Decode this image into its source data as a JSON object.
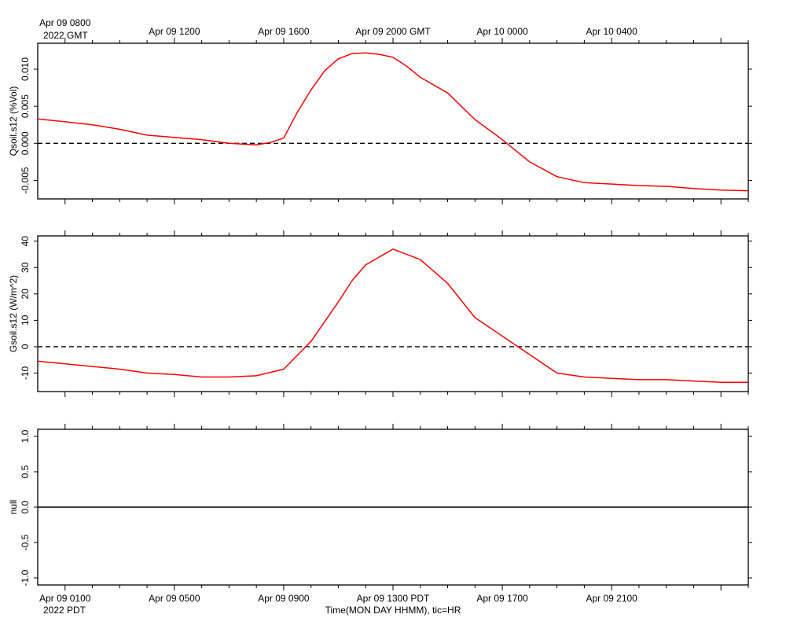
{
  "chart_data": [
    {
      "type": "line",
      "ylabel": "Qsoil.s12 (%Vol)",
      "ylim": [
        -0.0075,
        0.0135
      ],
      "yticks": [
        -0.005,
        0.0,
        0.005,
        0.01
      ],
      "ytick_labels": [
        "-0.005",
        "0.000",
        "0.005",
        "0.010"
      ],
      "zero_line": "dashed",
      "line_color": "#ff0000",
      "x": [
        0,
        1,
        2,
        3,
        4,
        5,
        6,
        7,
        8,
        8.5,
        9,
        9.5,
        10,
        10.5,
        11,
        11.5,
        12,
        12.5,
        13,
        13.5,
        14,
        15,
        16,
        17,
        18,
        19,
        20,
        21,
        22,
        23,
        24,
        25,
        26
      ],
      "values": [
        0.0033,
        0.0029,
        0.0025,
        0.0019,
        0.0011,
        0.0008,
        0.0005,
        0.0,
        -0.0002,
        0.0001,
        0.0007,
        0.0042,
        0.0072,
        0.0098,
        0.0114,
        0.0121,
        0.0122,
        0.012,
        0.0116,
        0.0104,
        0.0089,
        0.0068,
        0.0032,
        0.0005,
        -0.0025,
        -0.0045,
        -0.0053,
        -0.0055,
        -0.0057,
        -0.0058,
        -0.0061,
        -0.0063,
        -0.0064
      ]
    },
    {
      "type": "line",
      "ylabel": "Gsoil.s12 (W/m^2)",
      "ylim": [
        -17,
        42
      ],
      "yticks": [
        -10,
        0,
        10,
        20,
        30,
        40
      ],
      "ytick_labels": [
        "-10",
        "0",
        "10",
        "20",
        "30",
        "40"
      ],
      "zero_line": "dashed",
      "line_color": "#ff0000",
      "x": [
        0,
        1,
        2,
        3,
        4,
        5,
        6,
        7,
        8,
        9,
        10,
        11,
        11.5,
        12,
        13,
        14,
        15,
        16,
        17,
        18,
        19,
        20,
        21,
        22,
        23,
        24,
        25,
        26
      ],
      "values": [
        -5.5,
        -6.5,
        -7.5,
        -8.5,
        -10.0,
        -10.5,
        -11.5,
        -11.5,
        -11.0,
        -8.5,
        2.0,
        17.0,
        25.0,
        31.0,
        37.0,
        33.0,
        24.0,
        11.0,
        4.0,
        -3.0,
        -10.0,
        -11.5,
        -12.0,
        -12.5,
        -12.5,
        -13.0,
        -13.5,
        -13.5
      ]
    },
    {
      "type": "line",
      "ylabel": "null",
      "ylim": [
        -1.1,
        1.1
      ],
      "yticks": [
        -1.0,
        -0.5,
        0.0,
        0.5,
        1.0
      ],
      "ytick_labels": [
        "-1.0",
        "-0.5",
        "0.0",
        "0.5",
        "1.0"
      ],
      "zero_line": "solid",
      "values": []
    }
  ],
  "x_axis": {
    "top_ticks": [
      "Apr 09 0800",
      "Apr 09 1200",
      "Apr 09 1600",
      "Apr 09 2000 GMT",
      "Apr 10 0000",
      "Apr 10 0400"
    ],
    "top_year": "2022 GMT",
    "bottom_ticks": [
      "Apr 09 0100",
      "Apr 09 0500",
      "Apr 09 0900",
      "Apr 09 1300 PDT",
      "Apr 09 1700",
      "Apr 09 2100"
    ],
    "bottom_year": "2022 PDT",
    "xlabel": "Time(MON DAY HHMM), tic=HR"
  }
}
